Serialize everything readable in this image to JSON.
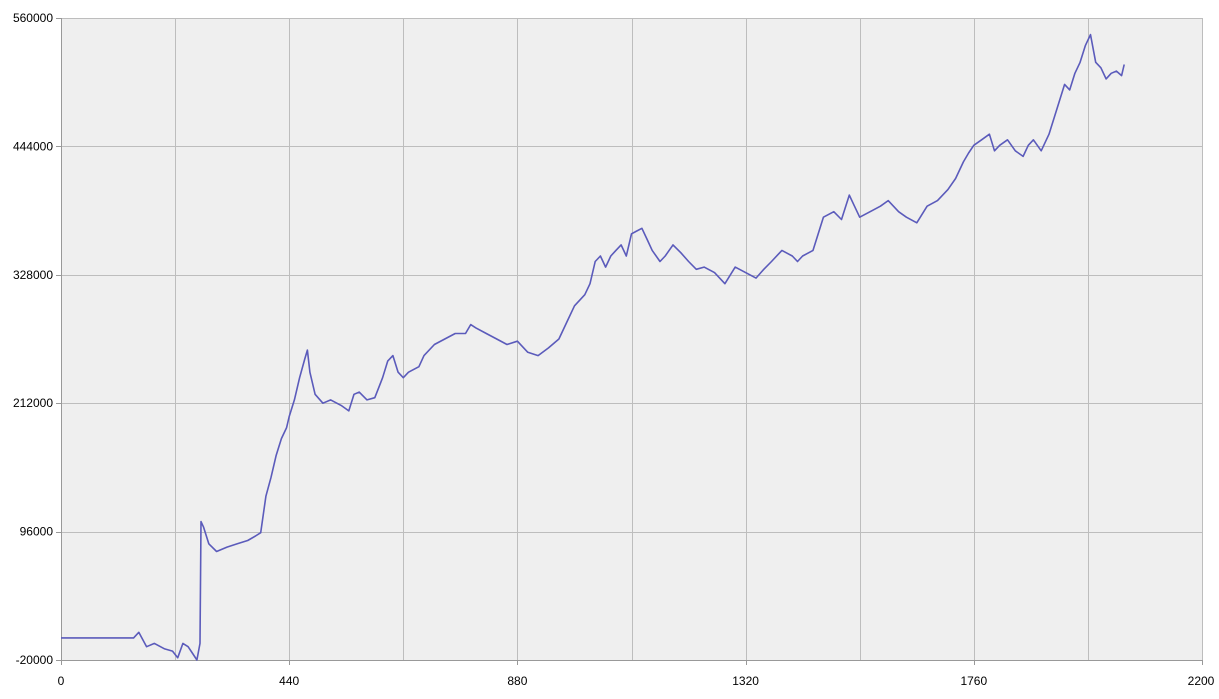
{
  "chart_data": {
    "type": "line",
    "title": "",
    "xlabel": "",
    "ylabel": "",
    "xlim": [
      0,
      2200
    ],
    "ylim": [
      -20000,
      560000
    ],
    "x_ticks": [
      0,
      440,
      880,
      1320,
      1760,
      2200
    ],
    "y_ticks": [
      -20000,
      96000,
      212000,
      328000,
      444000,
      560000
    ],
    "x_tick_labels": [
      "0",
      "440",
      "880",
      "1320",
      "1760",
      "2200"
    ],
    "y_tick_labels": [
      "-20000",
      "96000",
      "212000",
      "328000",
      "444000",
      "560000"
    ],
    "grid": true,
    "colors": {
      "line": "#5b5bbb",
      "plot_bg": "#efefef",
      "grid": "#bdbdbd",
      "axis": "#999999"
    },
    "series": [
      {
        "x": [
          0,
          140,
          150,
          165,
          180,
          200,
          215,
          225,
          235,
          245,
          255,
          262,
          268,
          270,
          275,
          285,
          300,
          320,
          340,
          360,
          375,
          385,
          395,
          405,
          415,
          425,
          435,
          440,
          450,
          460,
          470,
          475,
          480,
          490,
          505,
          520,
          540,
          555,
          565,
          575,
          590,
          605,
          620,
          630,
          640,
          650,
          660,
          670,
          690,
          700,
          720,
          740,
          760,
          780,
          790,
          800,
          820,
          840,
          860,
          880,
          900,
          920,
          940,
          960,
          975,
          990,
          1000,
          1010,
          1020,
          1030,
          1040,
          1050,
          1060,
          1070,
          1080,
          1090,
          1100,
          1120,
          1130,
          1140,
          1155,
          1165,
          1180,
          1195,
          1210,
          1225,
          1240,
          1260,
          1280,
          1300,
          1320,
          1340,
          1355,
          1370,
          1390,
          1410,
          1420,
          1430,
          1450,
          1470,
          1490,
          1505,
          1520,
          1530,
          1540,
          1560,
          1580,
          1595,
          1615,
          1630,
          1650,
          1670,
          1690,
          1700,
          1710,
          1725,
          1740,
          1750,
          1760,
          1775,
          1790,
          1800,
          1810,
          1825,
          1840,
          1855,
          1865,
          1875,
          1890,
          1905,
          1915,
          1925,
          1935,
          1945,
          1955,
          1965,
          1975,
          1985,
          1995,
          2005,
          2015,
          2025,
          2035,
          2045,
          2050
        ],
        "y": [
          0,
          0,
          5000,
          -8000,
          -5000,
          -10000,
          -12000,
          -18000,
          -5000,
          -8000,
          -15000,
          -20000,
          -5000,
          105000,
          100000,
          85000,
          78000,
          82000,
          85000,
          88000,
          92000,
          95000,
          128000,
          145000,
          165000,
          180000,
          190000,
          200000,
          215000,
          235000,
          252000,
          260000,
          240000,
          220000,
          212000,
          215000,
          210000,
          205000,
          220000,
          222000,
          215000,
          217000,
          235000,
          250000,
          255000,
          240000,
          235000,
          240000,
          245000,
          255000,
          265000,
          270000,
          275000,
          275000,
          283000,
          280000,
          275000,
          270000,
          265000,
          268000,
          258000,
          255000,
          262000,
          270000,
          285000,
          300000,
          305000,
          310000,
          320000,
          340000,
          345000,
          335000,
          345000,
          350000,
          355000,
          345000,
          365000,
          370000,
          360000,
          350000,
          340000,
          345000,
          355000,
          348000,
          340000,
          333000,
          335000,
          330000,
          320000,
          335000,
          330000,
          325000,
          333000,
          340000,
          350000,
          345000,
          340000,
          345000,
          350000,
          380000,
          385000,
          378000,
          400000,
          390000,
          380000,
          385000,
          390000,
          395000,
          385000,
          380000,
          375000,
          390000,
          395000,
          400000,
          405000,
          415000,
          430000,
          438000,
          445000,
          450000,
          455000,
          440000,
          445000,
          450000,
          440000,
          435000,
          445000,
          450000,
          440000,
          455000,
          470000,
          485000,
          500000,
          495000,
          510000,
          520000,
          535000,
          545000,
          520000,
          515000,
          505000,
          510000,
          512000,
          508000,
          518000
        ]
      }
    ]
  }
}
